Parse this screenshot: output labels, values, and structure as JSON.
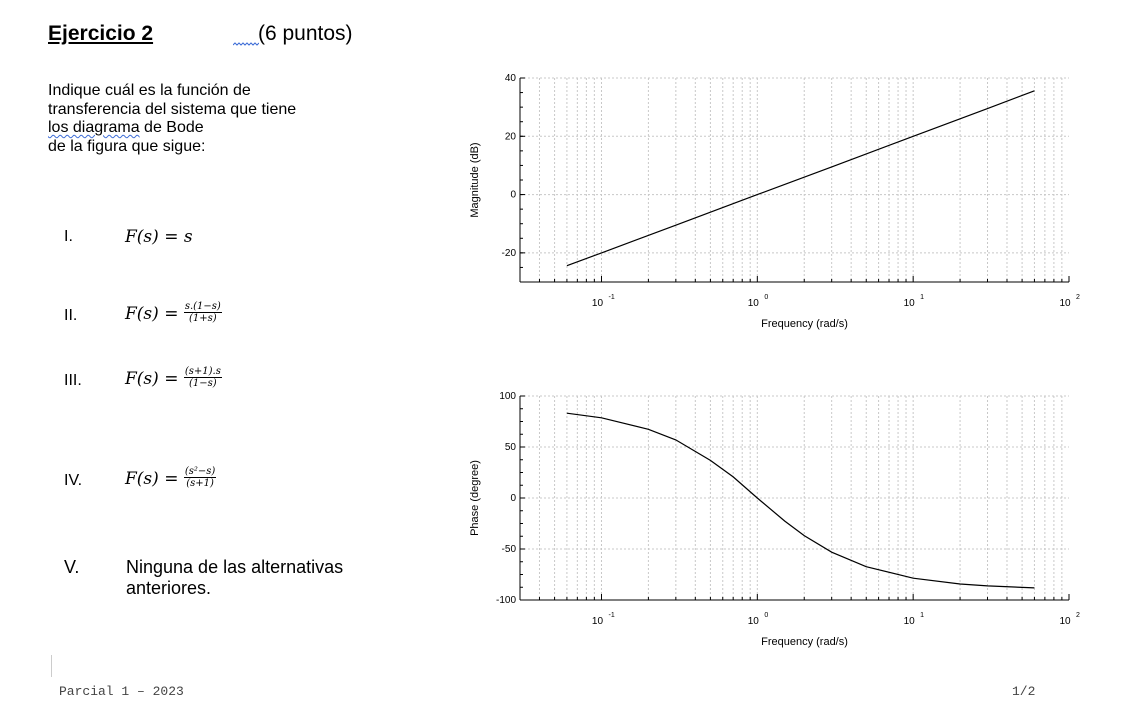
{
  "header": {
    "title": "Ejercicio 2",
    "points": "(6 puntos)"
  },
  "question": {
    "line1": "Indique cuál es la función de",
    "line2": "transferencia del sistema que tiene",
    "line3_underlined": "los diagrama",
    "line3_rest": " de Bode",
    "line4": "de la figura que sigue:"
  },
  "options": [
    {
      "num": "I.",
      "lhs": "F(s) = s",
      "num_expr": "",
      "den_expr": ""
    },
    {
      "num": "II.",
      "lhs": "F(s) = ",
      "num_expr": "s.(1−s)",
      "den_expr": "(1+s)"
    },
    {
      "num": "III.",
      "lhs": "F(s) = ",
      "num_expr": "(s+1).s",
      "den_expr": "(1−s)"
    },
    {
      "num": "IV.",
      "lhs": "F(s) = ",
      "num_expr": "(s²−s)",
      "den_expr": "(s+1)"
    },
    {
      "num": "V.",
      "text": "Ninguna de las alternativas anteriores."
    }
  ],
  "footer": {
    "left": "Parcial 1 – 2023",
    "right": "1/2"
  },
  "chart_data": [
    {
      "type": "line",
      "xlabel": "Frequency (rad/s)",
      "ylabel": "Magnitude (dB)",
      "x_scale": "log",
      "xlim": [
        0.03,
        100
      ],
      "ylim": [
        -30,
        40
      ],
      "x_ticks": [
        {
          "base": "10",
          "exp": "-1"
        },
        {
          "base": "10",
          "exp": "0"
        },
        {
          "base": "10",
          "exp": "1"
        },
        {
          "base": "10",
          "exp": "2"
        }
      ],
      "y_ticks": [
        "40",
        "20",
        "0",
        "-20"
      ],
      "y_tick_values": [
        40,
        20,
        0,
        -20
      ],
      "grid": true,
      "series": [
        {
          "x": [
            0.06,
            0.1,
            0.3,
            1,
            3,
            10,
            30,
            60
          ],
          "y": [
            -24.4,
            -20,
            -10.5,
            0,
            9.5,
            20,
            29.5,
            35.6
          ]
        }
      ]
    },
    {
      "type": "line",
      "xlabel": "Frequency (rad/s)",
      "ylabel": "Phase (degree)",
      "x_scale": "log",
      "xlim": [
        0.03,
        100
      ],
      "ylim": [
        -100,
        100
      ],
      "x_ticks": [
        {
          "base": "10",
          "exp": "-1"
        },
        {
          "base": "10",
          "exp": "0"
        },
        {
          "base": "10",
          "exp": "1"
        },
        {
          "base": "10",
          "exp": "2"
        }
      ],
      "y_ticks": [
        "100",
        "50",
        "0",
        "-50",
        "-100"
      ],
      "y_tick_values": [
        100,
        50,
        0,
        -50,
        -100
      ],
      "grid": true,
      "series": [
        {
          "x": [
            0.06,
            0.1,
            0.2,
            0.3,
            0.5,
            0.7,
            1,
            1.5,
            2,
            3,
            5,
            10,
            20,
            30,
            60
          ],
          "y": [
            83.1,
            78.6,
            67.4,
            57.0,
            36.9,
            20.7,
            0,
            -22.6,
            -36.9,
            -53.1,
            -67.4,
            -78.6,
            -84.3,
            -86.2,
            -88.1
          ]
        }
      ]
    }
  ]
}
